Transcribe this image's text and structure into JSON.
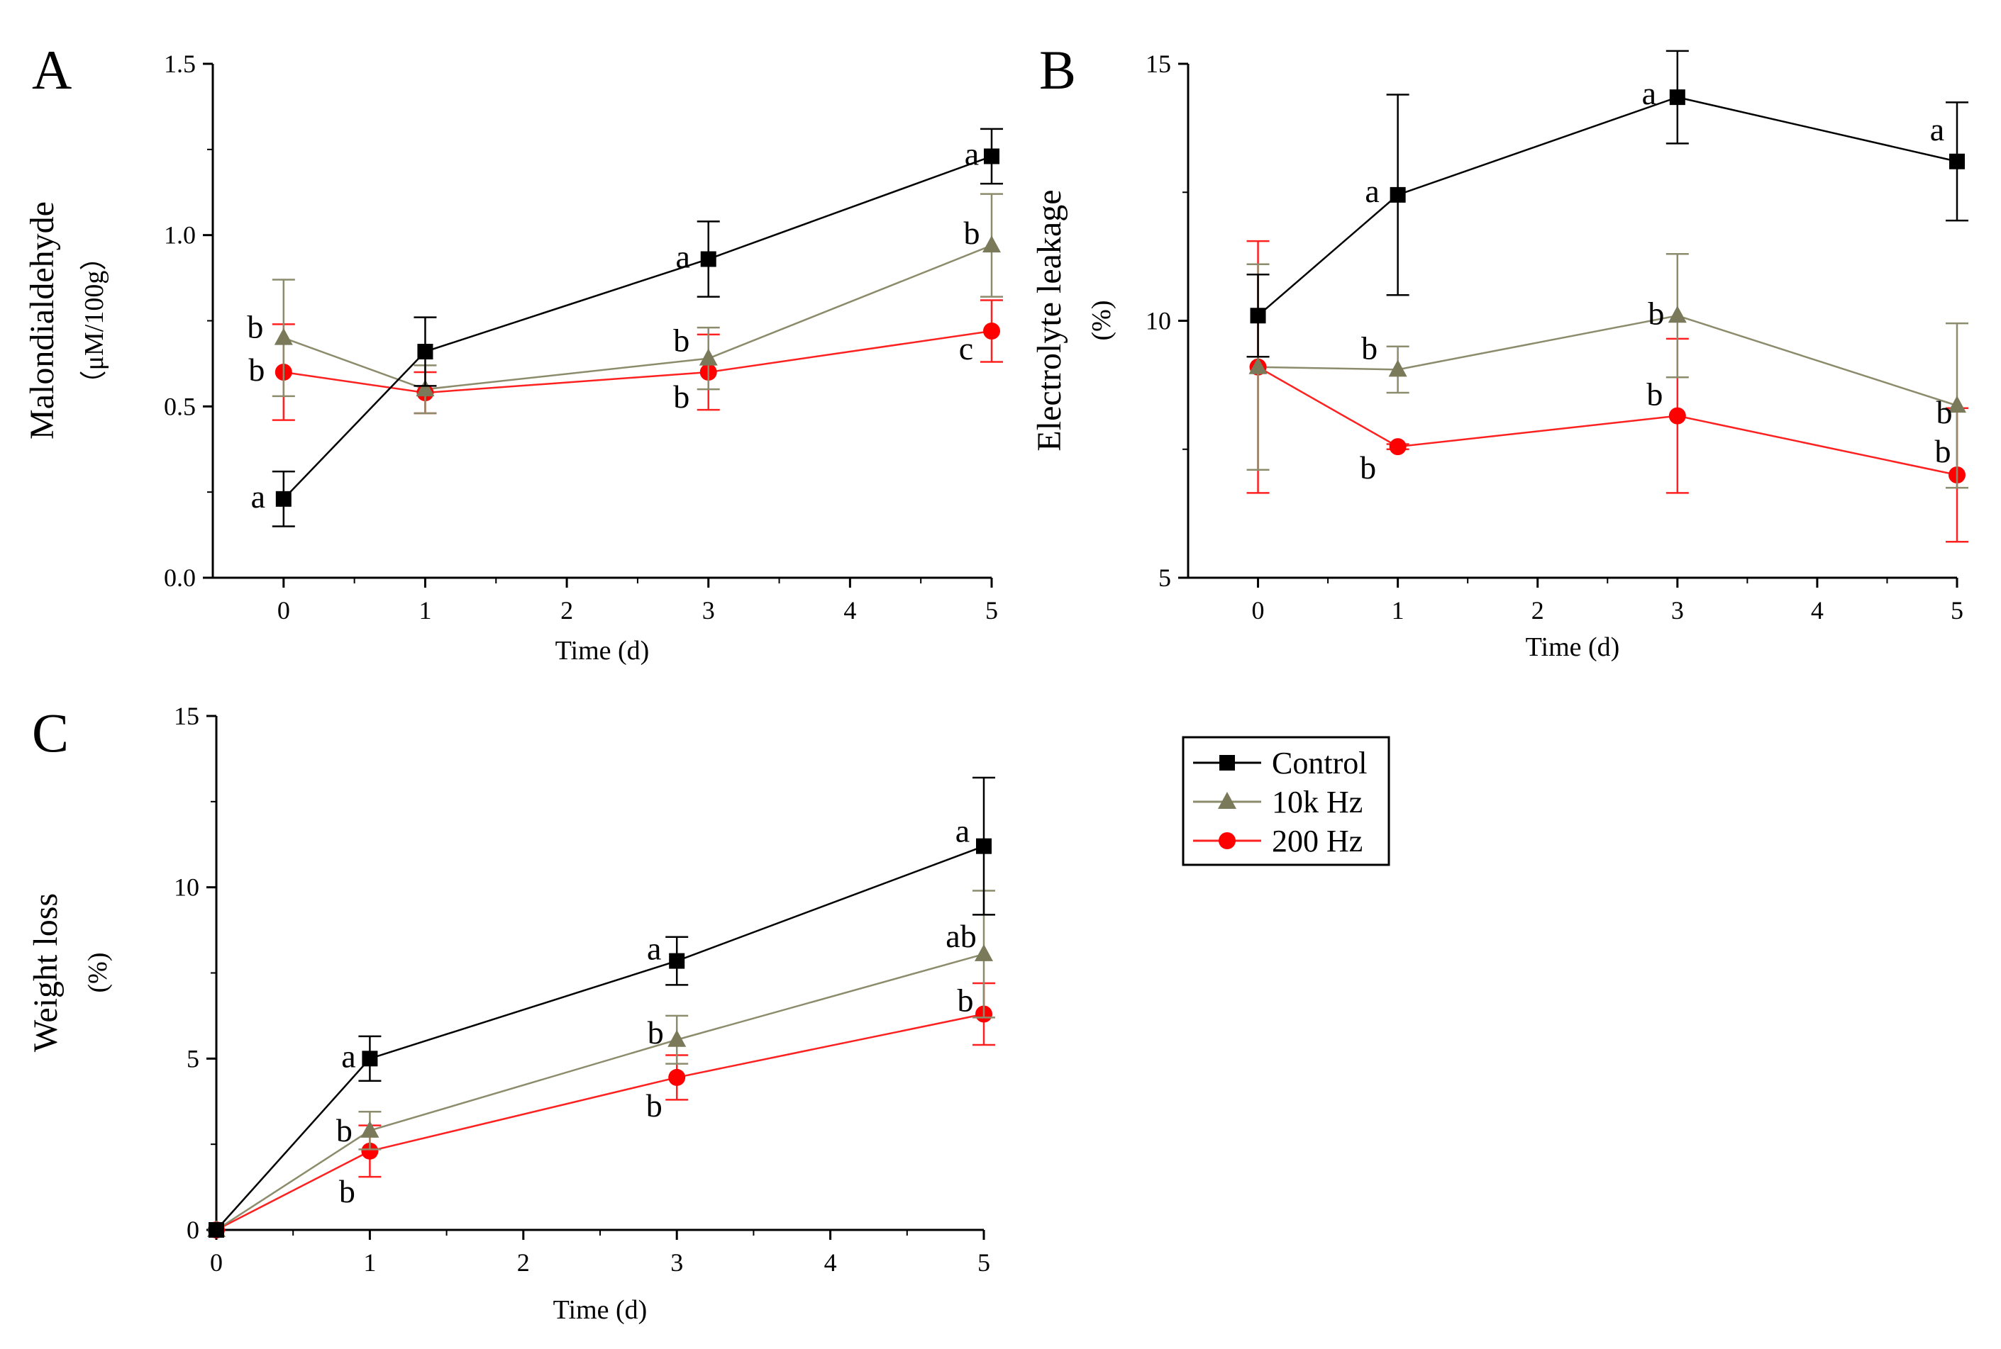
{
  "chart_data": [
    {
      "panel": "A",
      "type": "line",
      "ylabel_lines": [
        "Malondialdehyde",
        "（μM/100g）"
      ],
      "xlabel": "Time (d)",
      "xlim": [
        -0.5,
        5
      ],
      "ylim": [
        0,
        1.5
      ],
      "xticks": [
        0,
        1,
        2,
        3,
        4,
        5
      ],
      "xtick_labels": [
        "0",
        "1",
        "2",
        "3",
        "4",
        "5"
      ],
      "yticks": [
        0,
        0.5,
        1.0,
        1.5
      ],
      "ytick_labels": [
        "0.0",
        "0.5",
        "1.0",
        "1.5"
      ],
      "x": [
        0,
        1,
        3,
        5
      ],
      "series": [
        {
          "name": "Control",
          "values": [
            0.23,
            0.66,
            0.93,
            1.23
          ],
          "errors": [
            0.08,
            0.1,
            0.11,
            0.08
          ],
          "letters": [
            "a",
            "",
            "a",
            "a"
          ]
        },
        {
          "name": "10k Hz",
          "values": [
            0.7,
            0.55,
            0.64,
            0.97
          ],
          "errors": [
            0.17,
            0.07,
            0.09,
            0.15
          ],
          "letters": [
            "b",
            "",
            "b",
            "b"
          ]
        },
        {
          "name": "200 Hz",
          "values": [
            0.6,
            0.54,
            0.6,
            0.72
          ],
          "errors": [
            0.14,
            0.06,
            0.11,
            0.09
          ],
          "letters": [
            "b",
            "",
            "b",
            "c"
          ]
        }
      ]
    },
    {
      "panel": "B",
      "type": "line",
      "ylabel_lines": [
        "Electrolyte leakage",
        "(%)"
      ],
      "xlabel": "Time (d)",
      "xlim": [
        -0.5,
        5
      ],
      "ylim": [
        5,
        15
      ],
      "xticks": [
        0,
        1,
        2,
        3,
        4,
        5
      ],
      "xtick_labels": [
        "0",
        "1",
        "2",
        "3",
        "4",
        "5"
      ],
      "yticks": [
        5,
        10,
        15
      ],
      "ytick_labels": [
        "5",
        "10",
        "15"
      ],
      "x": [
        0,
        1,
        3,
        5
      ],
      "series": [
        {
          "name": "Control",
          "values": [
            10.1,
            12.45,
            14.35,
            13.1
          ],
          "errors": [
            0.8,
            1.95,
            0.9,
            1.15
          ],
          "letters": [
            "",
            "a",
            "a",
            "a"
          ]
        },
        {
          "name": "10k Hz",
          "values": [
            9.1,
            9.05,
            10.1,
            8.35
          ],
          "errors": [
            2.0,
            0.45,
            1.2,
            1.6
          ],
          "letters": [
            "",
            "b",
            "b",
            "b"
          ]
        },
        {
          "name": "200 Hz",
          "values": [
            9.1,
            7.55,
            8.15,
            7.0
          ],
          "errors": [
            2.45,
            0.05,
            1.5,
            1.3
          ],
          "letters": [
            "",
            "b",
            "b",
            "b"
          ]
        }
      ]
    },
    {
      "panel": "C",
      "type": "line",
      "ylabel_lines": [
        "Weight loss",
        "(%)"
      ],
      "xlabel": "Time (d)",
      "xlim": [
        0,
        5
      ],
      "ylim": [
        0,
        15
      ],
      "xticks": [
        0,
        1,
        2,
        3,
        4,
        5
      ],
      "xtick_labels": [
        "0",
        "1",
        "2",
        "3",
        "4",
        "5"
      ],
      "yticks": [
        0,
        5,
        10,
        15
      ],
      "ytick_labels": [
        "0",
        "5",
        "10",
        "15"
      ],
      "x": [
        0,
        1,
        3,
        5
      ],
      "series": [
        {
          "name": "Control",
          "values": [
            0,
            5.0,
            7.85,
            11.2
          ],
          "errors": [
            0,
            0.65,
            0.7,
            2.0
          ],
          "letters": [
            "",
            "a",
            "a",
            "a"
          ]
        },
        {
          "name": "10k Hz",
          "values": [
            0,
            2.9,
            5.55,
            8.05
          ],
          "errors": [
            0,
            0.55,
            0.7,
            1.85
          ],
          "letters": [
            "",
            "b",
            "b",
            "ab"
          ]
        },
        {
          "name": "200 Hz",
          "values": [
            0,
            2.3,
            4.45,
            6.3
          ],
          "errors": [
            0,
            0.75,
            0.65,
            0.9
          ],
          "letters": [
            "",
            "b",
            "b",
            "b"
          ]
        }
      ]
    }
  ],
  "legend": {
    "items": [
      {
        "label": "Control",
        "color": "#000000",
        "marker": "square"
      },
      {
        "label": "10k Hz",
        "color": "#7a7a5a",
        "marker": "triangle"
      },
      {
        "label": "200 Hz",
        "color": "#ff0000",
        "marker": "circle"
      }
    ]
  },
  "series_style": {
    "Control": {
      "line": "#000000",
      "marker_fill": "#000000",
      "marker": "square"
    },
    "10k Hz": {
      "line": "#8c8c6c",
      "marker_fill": "#7a7a5a",
      "marker": "triangle"
    },
    "200 Hz": {
      "line": "#ff2020",
      "marker_fill": "#ff0000",
      "marker": "circle"
    }
  }
}
